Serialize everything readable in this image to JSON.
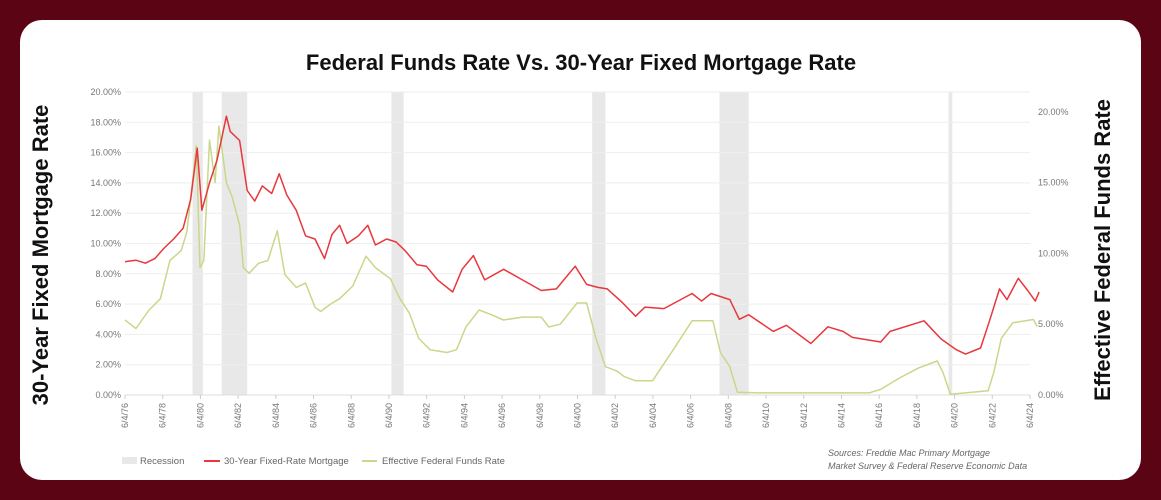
{
  "chart_data": {
    "type": "line",
    "title": "Federal Funds Rate Vs. 30-Year Fixed Mortgage Rate",
    "ylabel_left": "30-Year Fixed Mortgage Rate",
    "ylabel_right": "Effective Federal Funds Rate",
    "yticks_left": [
      "0.00%",
      "2.00%",
      "4.00%",
      "6.00%",
      "8.00%",
      "10.00%",
      "12.00%",
      "14.00%",
      "16.00%",
      "18.00%",
      "20.00%"
    ],
    "ylim_left": [
      0,
      20
    ],
    "yticks_right": [
      "0.00%",
      "5.00%",
      "10.00%",
      "15.00%",
      "20.00%"
    ],
    "ylim_right": [
      0,
      21.4
    ],
    "xticks": [
      "6/4/76",
      "6/4/78",
      "6/4/80",
      "6/4/82",
      "6/4/84",
      "6/4/86",
      "6/4/88",
      "6/4/90",
      "6/4/92",
      "6/4/94",
      "6/4/96",
      "6/4/98",
      "6/4/00",
      "6/4/02",
      "6/4/04",
      "6/4/06",
      "6/4/08",
      "6/4/10",
      "6/4/12",
      "6/4/14",
      "6/4/16",
      "6/4/18",
      "6/4/20",
      "6/4/22",
      "6/4/24"
    ],
    "grid": true,
    "legend_position": "bottom-left",
    "recessions": [
      [
        1980.0,
        1980.55
      ],
      [
        1981.55,
        1982.9
      ],
      [
        1990.55,
        1991.2
      ],
      [
        2001.2,
        2001.9
      ],
      [
        2007.95,
        2009.5
      ],
      [
        2020.1,
        2020.3
      ]
    ],
    "series": [
      {
        "name": "30-Year Fixed-Rate Mortgage",
        "axis": "left",
        "color": "#e8373d",
        "points": [
          [
            1976.42,
            8.8
          ],
          [
            1977,
            8.9
          ],
          [
            1977.5,
            8.7
          ],
          [
            1978,
            9.0
          ],
          [
            1978.5,
            9.7
          ],
          [
            1979,
            10.3
          ],
          [
            1979.5,
            11.0
          ],
          [
            1979.9,
            12.9
          ],
          [
            1980.25,
            16.3
          ],
          [
            1980.5,
            12.2
          ],
          [
            1980.9,
            14.0
          ],
          [
            1981.3,
            15.5
          ],
          [
            1981.8,
            18.4
          ],
          [
            1982.0,
            17.4
          ],
          [
            1982.5,
            16.8
          ],
          [
            1982.9,
            13.5
          ],
          [
            1983.3,
            12.8
          ],
          [
            1983.7,
            13.8
          ],
          [
            1984.2,
            13.3
          ],
          [
            1984.6,
            14.6
          ],
          [
            1985.0,
            13.2
          ],
          [
            1985.5,
            12.2
          ],
          [
            1986.0,
            10.5
          ],
          [
            1986.5,
            10.3
          ],
          [
            1987.0,
            9.0
          ],
          [
            1987.4,
            10.6
          ],
          [
            1987.8,
            11.2
          ],
          [
            1988.2,
            10.0
          ],
          [
            1988.8,
            10.5
          ],
          [
            1989.3,
            11.2
          ],
          [
            1989.7,
            9.9
          ],
          [
            1990.3,
            10.3
          ],
          [
            1990.8,
            10.1
          ],
          [
            1991.3,
            9.5
          ],
          [
            1991.9,
            8.6
          ],
          [
            1992.4,
            8.5
          ],
          [
            1993.0,
            7.6
          ],
          [
            1993.8,
            6.8
          ],
          [
            1994.3,
            8.3
          ],
          [
            1994.9,
            9.2
          ],
          [
            1995.5,
            7.6
          ],
          [
            1996.5,
            8.3
          ],
          [
            1997.5,
            7.6
          ],
          [
            1998.5,
            6.9
          ],
          [
            1999.3,
            7.0
          ],
          [
            2000.3,
            8.5
          ],
          [
            2000.9,
            7.3
          ],
          [
            2001.5,
            7.1
          ],
          [
            2002.0,
            7.0
          ],
          [
            2002.8,
            6.1
          ],
          [
            2003.5,
            5.2
          ],
          [
            2004.0,
            5.8
          ],
          [
            2005.0,
            5.7
          ],
          [
            2006.5,
            6.7
          ],
          [
            2007.0,
            6.2
          ],
          [
            2007.5,
            6.7
          ],
          [
            2008.5,
            6.3
          ],
          [
            2009.0,
            5.0
          ],
          [
            2009.5,
            5.3
          ],
          [
            2010.8,
            4.2
          ],
          [
            2011.5,
            4.6
          ],
          [
            2012.8,
            3.4
          ],
          [
            2013.7,
            4.5
          ],
          [
            2014.5,
            4.2
          ],
          [
            2015.0,
            3.8
          ],
          [
            2016.5,
            3.5
          ],
          [
            2017.0,
            4.2
          ],
          [
            2018.8,
            4.9
          ],
          [
            2019.7,
            3.7
          ],
          [
            2020.5,
            3.0
          ],
          [
            2021.0,
            2.7
          ],
          [
            2021.8,
            3.1
          ],
          [
            2022.3,
            5.0
          ],
          [
            2022.8,
            7.0
          ],
          [
            2023.2,
            6.3
          ],
          [
            2023.8,
            7.7
          ],
          [
            2024.3,
            6.9
          ],
          [
            2024.7,
            6.2
          ],
          [
            2024.9,
            6.8
          ]
        ]
      },
      {
        "name": "Effective Federal Funds Rate",
        "axis": "right",
        "color": "#c8d88a",
        "points": [
          [
            1976.42,
            5.3
          ],
          [
            1977.0,
            4.7
          ],
          [
            1977.7,
            6.0
          ],
          [
            1978.3,
            6.8
          ],
          [
            1978.8,
            9.5
          ],
          [
            1979.4,
            10.2
          ],
          [
            1979.7,
            11.5
          ],
          [
            1979.9,
            13.8
          ],
          [
            1980.2,
            17.6
          ],
          [
            1980.4,
            9.0
          ],
          [
            1980.6,
            9.5
          ],
          [
            1980.9,
            18.0
          ],
          [
            1981.2,
            15.0
          ],
          [
            1981.4,
            19.0
          ],
          [
            1981.8,
            15.0
          ],
          [
            1982.1,
            14.0
          ],
          [
            1982.5,
            12.0
          ],
          [
            1982.7,
            9.0
          ],
          [
            1983.0,
            8.6
          ],
          [
            1983.5,
            9.3
          ],
          [
            1984.0,
            9.5
          ],
          [
            1984.5,
            11.6
          ],
          [
            1984.9,
            8.5
          ],
          [
            1985.5,
            7.6
          ],
          [
            1986.0,
            7.9
          ],
          [
            1986.5,
            6.2
          ],
          [
            1986.8,
            5.9
          ],
          [
            1987.3,
            6.4
          ],
          [
            1987.8,
            6.8
          ],
          [
            1988.5,
            7.7
          ],
          [
            1989.2,
            9.8
          ],
          [
            1989.7,
            9.0
          ],
          [
            1990.5,
            8.2
          ],
          [
            1991.0,
            6.8
          ],
          [
            1991.5,
            5.8
          ],
          [
            1992.0,
            4.0
          ],
          [
            1992.6,
            3.2
          ],
          [
            1993.5,
            3.0
          ],
          [
            1994.0,
            3.2
          ],
          [
            1994.5,
            4.8
          ],
          [
            1995.2,
            6.0
          ],
          [
            1995.8,
            5.7
          ],
          [
            1996.5,
            5.3
          ],
          [
            1997.5,
            5.5
          ],
          [
            1998.5,
            5.5
          ],
          [
            1998.9,
            4.8
          ],
          [
            1999.5,
            5.0
          ],
          [
            2000.4,
            6.5
          ],
          [
            2000.9,
            6.5
          ],
          [
            2001.4,
            4.0
          ],
          [
            2001.9,
            2.0
          ],
          [
            2002.5,
            1.7
          ],
          [
            2002.9,
            1.3
          ],
          [
            2003.5,
            1.0
          ],
          [
            2004.4,
            1.0
          ],
          [
            2005.5,
            3.2
          ],
          [
            2006.5,
            5.25
          ],
          [
            2007.6,
            5.25
          ],
          [
            2008.0,
            3.0
          ],
          [
            2008.5,
            2.0
          ],
          [
            2008.9,
            0.2
          ],
          [
            2010.0,
            0.15
          ],
          [
            2015.9,
            0.15
          ],
          [
            2016.5,
            0.4
          ],
          [
            2017.5,
            1.2
          ],
          [
            2018.5,
            1.9
          ],
          [
            2019.5,
            2.4
          ],
          [
            2019.8,
            1.6
          ],
          [
            2020.2,
            0.05
          ],
          [
            2022.2,
            0.3
          ],
          [
            2022.5,
            1.6
          ],
          [
            2022.9,
            4.0
          ],
          [
            2023.5,
            5.1
          ],
          [
            2024.6,
            5.33
          ],
          [
            2024.8,
            4.83
          ]
        ]
      }
    ]
  },
  "legend": {
    "recession": "Recession",
    "mortgage": "30-Year Fixed-Rate Mortgage",
    "fedfunds": "Effective Federal Funds Rate"
  },
  "sources": [
    "Sources: Freddie Mac Primary Mortgage",
    "Market Survey & Federal Reserve Economic Data"
  ],
  "colors": {
    "frame": "#5a0414",
    "recession": "#e8e8e8"
  }
}
